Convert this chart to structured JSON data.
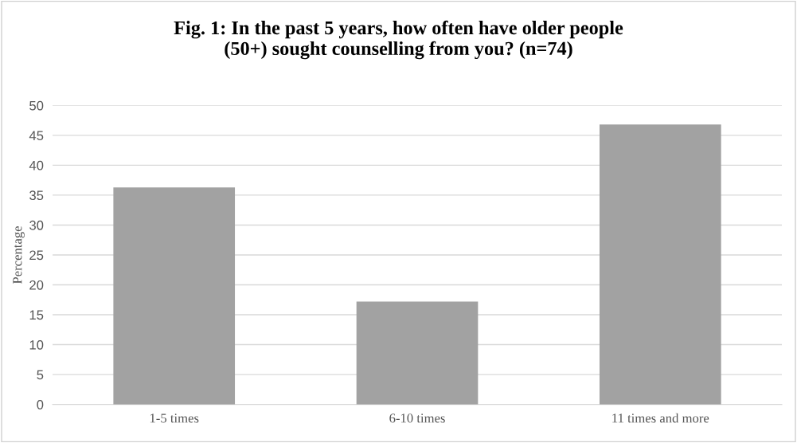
{
  "chart_data": {
    "type": "bar",
    "title": "Fig. 1: In the past 5 years, how often have older people\n(50+) sought counselling from you? (n=74)",
    "ylabel": "Percentage",
    "categories": [
      "1-5 times",
      "6-10 times",
      "11 times and more"
    ],
    "values": [
      36.3,
      17.2,
      46.8
    ],
    "color": "#a2a2a2",
    "ylim": [
      0,
      50
    ],
    "yticks": [
      0,
      5,
      10,
      15,
      20,
      25,
      30,
      35,
      40,
      45,
      50
    ],
    "grid": "y"
  }
}
